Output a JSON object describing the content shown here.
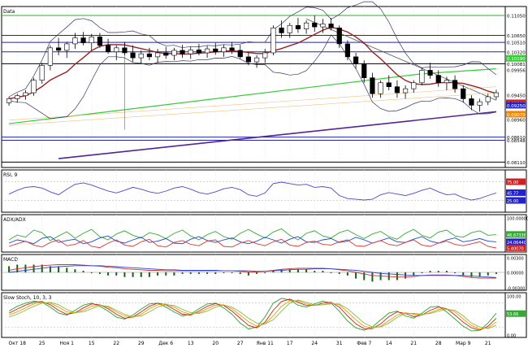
{
  "chart_data": [
    {
      "panel": "price",
      "type": "candlestick",
      "title": "Data",
      "y_tick_labels": [
        "0.11050",
        "0.10650",
        "0.10510",
        "0.10320",
        "0.10190",
        "0.10081",
        "0.09956",
        "0.09450",
        "0.09298",
        "0.09250",
        "0.09070",
        "0.08960",
        "0.08610",
        "0.08548",
        "0.08110"
      ],
      "highlighted_labels": [
        {
          "text": "0.10190",
          "color": "#33cc33"
        },
        {
          "text": "0.09298",
          "color": "#cc2222"
        },
        {
          "text": "0.09250",
          "color": "#2222cc"
        },
        {
          "text": "0.09070",
          "color": "#ee8800"
        }
      ],
      "horizontal_levels": [
        {
          "value": 0.1105,
          "color": "#33aa33"
        },
        {
          "value": 0.1065,
          "color": "#2222aa"
        },
        {
          "value": 0.1051,
          "color": "#2222aa"
        },
        {
          "value": 0.1032,
          "color": "#2222aa"
        },
        {
          "value": 0.10081,
          "color": "#000000"
        },
        {
          "value": 0.0861,
          "color": "#2222aa"
        },
        {
          "value": 0.08548,
          "color": "#2222aa"
        },
        {
          "value": 0.0811,
          "color": "#000000"
        }
      ],
      "candles": [
        [
          0.093,
          0.0942,
          0.0924,
          0.0938
        ],
        [
          0.0938,
          0.0948,
          0.093,
          0.0944
        ],
        [
          0.0944,
          0.0955,
          0.0936,
          0.095
        ],
        [
          0.095,
          0.098,
          0.0944,
          0.0975
        ],
        [
          0.0975,
          0.101,
          0.0968,
          0.1005
        ],
        [
          0.1005,
          0.1045,
          0.0995,
          0.104
        ],
        [
          0.104,
          0.106,
          0.1025,
          0.1035
        ],
        [
          0.1035,
          0.1052,
          0.102,
          0.1048
        ],
        [
          0.1048,
          0.107,
          0.1038,
          0.106
        ],
        [
          0.106,
          0.1072,
          0.1045,
          0.105
        ],
        [
          0.105,
          0.1068,
          0.1035,
          0.1062
        ],
        [
          0.1062,
          0.107,
          0.104,
          0.1045
        ],
        [
          0.1045,
          0.1058,
          0.1028,
          0.1032
        ],
        [
          0.1032,
          0.1045,
          0.1015,
          0.104
        ],
        [
          0.104,
          0.1052,
          0.1025,
          0.103
        ],
        [
          0.103,
          0.1045,
          0.1012,
          0.102
        ],
        [
          0.102,
          0.1035,
          0.1008,
          0.1028
        ],
        [
          0.1028,
          0.104,
          0.1015,
          0.1022
        ],
        [
          0.1022,
          0.1038,
          0.101,
          0.103
        ],
        [
          0.103,
          0.1042,
          0.1018,
          0.1025
        ],
        [
          0.1025,
          0.104,
          0.1015,
          0.1035
        ],
        [
          0.1035,
          0.1046,
          0.102,
          0.1028
        ],
        [
          0.1028,
          0.1042,
          0.1018,
          0.1036
        ],
        [
          0.1036,
          0.1048,
          0.1025,
          0.103
        ],
        [
          0.103,
          0.1044,
          0.102,
          0.1038
        ],
        [
          0.1038,
          0.105,
          0.1026,
          0.1032
        ],
        [
          0.1032,
          0.1046,
          0.1022,
          0.104
        ],
        [
          0.104,
          0.1052,
          0.1028,
          0.1035
        ],
        [
          0.1035,
          0.1046,
          0.1018,
          0.1022
        ],
        [
          0.1022,
          0.1032,
          0.1005,
          0.1012
        ],
        [
          0.1012,
          0.1025,
          0.1,
          0.102
        ],
        [
          0.102,
          0.1038,
          0.101,
          0.103
        ],
        [
          0.103,
          0.1085,
          0.1025,
          0.108
        ],
        [
          0.108,
          0.1095,
          0.106,
          0.107
        ],
        [
          0.107,
          0.109,
          0.106,
          0.1085
        ],
        [
          0.1085,
          0.11,
          0.107,
          0.1078
        ],
        [
          0.1078,
          0.1095,
          0.1068,
          0.109
        ],
        [
          0.109,
          0.1105,
          0.1072,
          0.1082
        ],
        [
          0.1082,
          0.1098,
          0.107,
          0.1088
        ],
        [
          0.1088,
          0.11,
          0.1075,
          0.108
        ],
        [
          0.108,
          0.1085,
          0.104,
          0.1048
        ],
        [
          0.1048,
          0.1055,
          0.1015,
          0.1022
        ],
        [
          0.1022,
          0.103,
          0.0998,
          0.1008
        ],
        [
          0.1008,
          0.1015,
          0.097,
          0.098
        ],
        [
          0.098,
          0.099,
          0.094,
          0.0948
        ],
        [
          0.0948,
          0.0975,
          0.094,
          0.097
        ],
        [
          0.097,
          0.0985,
          0.0955,
          0.0962
        ],
        [
          0.0962,
          0.0975,
          0.094,
          0.095
        ],
        [
          0.095,
          0.0965,
          0.0938,
          0.0958
        ],
        [
          0.0958,
          0.0975,
          0.095,
          0.097
        ],
        [
          0.097,
          0.1,
          0.0965,
          0.0995
        ],
        [
          0.0995,
          0.101,
          0.0978,
          0.0985
        ],
        [
          0.0985,
          0.0995,
          0.0962,
          0.097
        ],
        [
          0.097,
          0.0982,
          0.0955,
          0.0975
        ],
        [
          0.0975,
          0.0985,
          0.095,
          0.0958
        ],
        [
          0.0958,
          0.0965,
          0.093,
          0.0938
        ],
        [
          0.0938,
          0.0945,
          0.0915,
          0.0925
        ],
        [
          0.0925,
          0.0938,
          0.0912,
          0.0932
        ],
        [
          0.0932,
          0.0948,
          0.0925,
          0.0942
        ],
        [
          0.0942,
          0.0956,
          0.0936,
          0.095
        ]
      ]
    },
    {
      "panel": "rsi",
      "type": "line",
      "title": "RSI, 9",
      "y_tick_labels": [
        "75.00",
        "45.77",
        "25.00"
      ],
      "highlighted_labels": [
        {
          "text": "75.00",
          "color": "#cc2222"
        },
        {
          "text": "45.77",
          "color": "#2222cc"
        },
        {
          "text": "25.00",
          "color": "#2222cc"
        }
      ],
      "series": [
        {
          "values": [
            42,
            52,
            60,
            62,
            58,
            48,
            40,
            55,
            68,
            72,
            66,
            58,
            50,
            45,
            52,
            60,
            55,
            48,
            44,
            50,
            58,
            62,
            55,
            46,
            42,
            48,
            56,
            60,
            54,
            40,
            36,
            45,
            70,
            74,
            70,
            66,
            68,
            60,
            62,
            58,
            38,
            30,
            28,
            26,
            28,
            40,
            46,
            42,
            38,
            44,
            52,
            58,
            48,
            40,
            42,
            32,
            26,
            30,
            38,
            45
          ]
        }
      ],
      "ylim": [
        0,
        100
      ]
    },
    {
      "panel": "adx",
      "type": "line",
      "title": "ADX/ADX",
      "y_tick_labels": [
        "100.00000",
        "46.67336",
        "24.06440",
        "5.40070"
      ],
      "highlighted_labels": [
        {
          "text": "46.67336",
          "color": "#33aa33"
        },
        {
          "text": "24.06440",
          "color": "#2222cc"
        },
        {
          "text": "5.40070",
          "color": "#cc2222"
        }
      ],
      "series": [
        {
          "values": [
            30,
            45,
            38,
            60,
            52,
            28,
            42,
            55,
            35,
            50,
            62,
            40,
            30,
            48,
            58,
            44,
            36,
            52,
            46,
            34,
            50,
            60,
            42,
            30,
            46,
            56,
            40,
            32,
            50,
            62,
            48,
            36,
            54,
            64,
            44,
            30,
            50,
            58,
            42,
            36,
            52,
            60,
            46,
            34,
            48,
            56,
            40,
            32,
            50,
            62,
            44,
            36,
            54,
            60,
            42,
            38,
            52,
            58,
            44,
            46
          ]
        },
        {
          "values": [
            20,
            30,
            25,
            18,
            35,
            40,
            22,
            28,
            32,
            18,
            24,
            36,
            42,
            26,
            20,
            30,
            38,
            22,
            26,
            34,
            20,
            18,
            32,
            40,
            28,
            22,
            30,
            36,
            24,
            18,
            26,
            38,
            30,
            20,
            32,
            40,
            24,
            22,
            30,
            34,
            22,
            26,
            38,
            30,
            20,
            28,
            36,
            24,
            22,
            32,
            40,
            26,
            20,
            30,
            36,
            24,
            28,
            34,
            26,
            24
          ]
        },
        {
          "values": [
            10,
            18,
            26,
            14,
            8,
            22,
            30,
            12,
            16,
            28,
            10,
            6,
            20,
            30,
            14,
            10,
            24,
            32,
            12,
            8,
            22,
            28,
            16,
            12,
            26,
            30,
            10,
            8,
            20,
            28,
            18,
            12,
            24,
            32,
            14,
            10,
            22,
            26,
            16,
            14,
            24,
            30,
            12,
            10,
            20,
            28,
            16,
            12,
            22,
            30,
            14,
            10,
            20,
            26,
            16,
            12,
            18,
            24,
            10,
            5
          ]
        }
      ],
      "ylim": [
        0,
        100
      ]
    },
    {
      "panel": "macd",
      "type": "line",
      "title": "MACD",
      "y_tick_labels": [
        "0.00300",
        "0.00000",
        "-0.00300"
      ],
      "series": [
        {
          "values": [
            0.0004,
            0.0007,
            0.0009,
            0.0011,
            0.0013,
            0.0014,
            0.0015,
            0.0015,
            0.0015,
            0.0014,
            0.0013,
            0.0012,
            0.001,
            0.0009,
            0.0007,
            0.0006,
            0.0005,
            0.0004,
            0.0004,
            0.0003,
            0.0003,
            0.0003,
            0.0003,
            0.0003,
            0.0003,
            0.0003,
            0.0003,
            0.0003,
            0.0002,
            0.0001,
            0.0001,
            0.0002,
            0.0004,
            0.0006,
            0.0007,
            0.0008,
            0.0008,
            0.0008,
            0.0008,
            0.0007,
            0.0005,
            0.0003,
            0.0,
            -0.0003,
            -0.0006,
            -0.0007,
            -0.0008,
            -0.0009,
            -0.0009,
            -0.0008,
            -0.0006,
            -0.0005,
            -0.0005,
            -0.0005,
            -0.0006,
            -0.0008,
            -0.001,
            -0.0011,
            -0.0011,
            -0.0011
          ]
        },
        {
          "values": [
            0.0,
            0.0002,
            0.0004,
            0.0006,
            0.0008,
            0.001,
            0.0011,
            0.0012,
            0.0013,
            0.0013,
            0.0013,
            0.0013,
            0.0012,
            0.0011,
            0.001,
            0.0009,
            0.0008,
            0.0007,
            0.0006,
            0.0005,
            0.0005,
            0.0004,
            0.0004,
            0.0004,
            0.0004,
            0.0004,
            0.0003,
            0.0003,
            0.0003,
            0.0003,
            0.0002,
            0.0002,
            0.0003,
            0.0004,
            0.0005,
            0.0006,
            0.0006,
            0.0007,
            0.0007,
            0.0007,
            0.0006,
            0.0005,
            0.0004,
            0.0002,
            0.0,
            -0.0002,
            -0.0003,
            -0.0004,
            -0.0005,
            -0.0006,
            -0.0006,
            -0.0006,
            -0.0006,
            -0.0006,
            -0.0006,
            -0.0006,
            -0.0007,
            -0.0008,
            -0.0009,
            -0.001
          ]
        }
      ],
      "ylim": [
        -0.003,
        0.003
      ]
    },
    {
      "panel": "stochastic",
      "type": "line",
      "title": "Slow Stoch, 10, 3, 3",
      "y_tick_labels": [
        "100.00",
        "53.66",
        "0.00"
      ],
      "highlighted_labels": [
        {
          "text": "53.66",
          "color": "#33aa33"
        }
      ],
      "series": [
        {
          "values": [
            60,
            72,
            80,
            85,
            82,
            70,
            55,
            50,
            62,
            75,
            80,
            72,
            60,
            45,
            40,
            50,
            65,
            78,
            80,
            70,
            58,
            48,
            52,
            66,
            78,
            80,
            68,
            52,
            30,
            15,
            20,
            45,
            80,
            92,
            88,
            75,
            70,
            78,
            85,
            80,
            60,
            35,
            18,
            12,
            20,
            38,
            55,
            60,
            48,
            42,
            55,
            70,
            72,
            58,
            40,
            22,
            10,
            12,
            30,
            55
          ]
        },
        {
          "values": [
            55,
            65,
            75,
            82,
            84,
            76,
            62,
            52,
            56,
            68,
            78,
            76,
            66,
            52,
            42,
            45,
            58,
            72,
            80,
            76,
            64,
            52,
            50,
            60,
            72,
            79,
            74,
            60,
            42,
            24,
            18,
            32,
            62,
            84,
            90,
            82,
            74,
            74,
            80,
            82,
            70,
            48,
            28,
            16,
            16,
            28,
            46,
            58,
            54,
            46,
            50,
            62,
            70,
            66,
            50,
            32,
            18,
            12,
            22,
            42
          ]
        },
        {
          "values": [
            50,
            58,
            68,
            78,
            82,
            80,
            70,
            58,
            55,
            62,
            72,
            76,
            70,
            58,
            48,
            44,
            52,
            66,
            76,
            78,
            70,
            58,
            52,
            56,
            66,
            75,
            76,
            66,
            50,
            33,
            22,
            28,
            48,
            72,
            86,
            86,
            78,
            74,
            76,
            80,
            76,
            58,
            38,
            22,
            17,
            22,
            36,
            50,
            56,
            52,
            50,
            56,
            64,
            66,
            58,
            40,
            24,
            15,
            18,
            32
          ]
        },
        {
          "values": [
            45,
            52,
            62,
            72,
            80,
            82,
            76,
            64,
            56,
            58,
            66,
            74,
            72,
            62,
            52,
            46,
            48,
            58,
            70,
            76,
            74,
            64,
            56,
            54,
            60,
            70,
            75,
            70,
            58,
            42,
            30,
            28,
            38,
            60,
            80,
            88,
            82,
            76,
            76,
            78,
            78,
            66,
            48,
            30,
            20,
            20,
            30,
            44,
            54,
            54,
            52,
            54,
            60,
            64,
            62,
            48,
            30,
            20,
            16,
            24
          ]
        }
      ],
      "ylim": [
        0,
        100
      ]
    }
  ],
  "x_axis": {
    "tick_labels": [
      "Окт 18",
      "25",
      "Ноя 1",
      "15",
      "22",
      "29",
      "Дек 6",
      "13",
      "20",
      "27",
      "Янв 11",
      "17",
      "24",
      "31",
      "Фев 7",
      "14",
      "21",
      "28",
      "Мар 9",
      "21"
    ]
  }
}
